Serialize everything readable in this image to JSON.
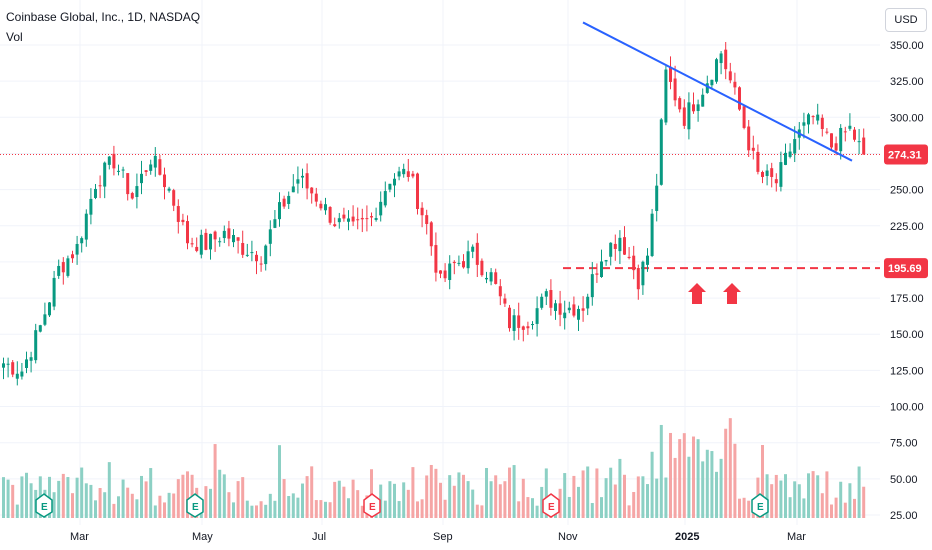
{
  "header": {
    "title": "Coinbase Global, Inc., 1D, NASDAQ",
    "volume_label": "Vol"
  },
  "currency": "USD",
  "chart_data": {
    "type": "candlestick",
    "price_axis": {
      "ticks": [
        "350.00",
        "325.00",
        "300.00",
        "275.00",
        "250.00",
        "225.00",
        "200.00",
        "175.00",
        "150.00",
        "125.00",
        "100.00",
        "75.00",
        "50.00",
        "25.00"
      ],
      "range": [
        20,
        362
      ]
    },
    "time_axis": {
      "ticks": [
        {
          "label": "Mar",
          "bold": false
        },
        {
          "label": "May",
          "bold": false
        },
        {
          "label": "Jul",
          "bold": false
        },
        {
          "label": "Sep",
          "bold": false
        },
        {
          "label": "Nov",
          "bold": false
        },
        {
          "label": "2025",
          "bold": true
        },
        {
          "label": "Mar",
          "bold": false
        }
      ]
    },
    "current_price": {
      "value": 274.31,
      "label": "274.31",
      "color": "#f23645"
    },
    "support_level": {
      "value": 195.69,
      "label": "195.69",
      "color": "#f23645"
    },
    "trendline": {
      "start_price": 349,
      "end_price": 270,
      "color": "#2962ff"
    },
    "earnings_markers": [
      {
        "label": "E",
        "color": "#089981"
      },
      {
        "label": "E",
        "color": "#089981"
      },
      {
        "label": "E",
        "color": "#f23645"
      },
      {
        "label": "E",
        "color": "#f23645"
      },
      {
        "label": "E",
        "color": "#089981"
      }
    ],
    "arrows": {
      "color": "#f23645",
      "count": 2
    },
    "colors": {
      "up": "#089981",
      "down": "#f23645",
      "vol_up": "#8cd0c4",
      "vol_down": "#f5a5a5",
      "grid": "#f0f3fa",
      "text": "#131722"
    },
    "anchors": [
      {
        "t": 0,
        "p": 130
      },
      {
        "t": 4,
        "p": 125
      },
      {
        "t": 8,
        "p": 155
      },
      {
        "t": 12,
        "p": 195
      },
      {
        "t": 16,
        "p": 210
      },
      {
        "t": 20,
        "p": 255
      },
      {
        "t": 24,
        "p": 270
      },
      {
        "t": 28,
        "p": 245
      },
      {
        "t": 32,
        "p": 272
      },
      {
        "t": 36,
        "p": 250
      },
      {
        "t": 40,
        "p": 215
      },
      {
        "t": 44,
        "p": 212
      },
      {
        "t": 48,
        "p": 220
      },
      {
        "t": 52,
        "p": 210
      },
      {
        "t": 56,
        "p": 205
      },
      {
        "t": 60,
        "p": 235
      },
      {
        "t": 64,
        "p": 258
      },
      {
        "t": 68,
        "p": 245
      },
      {
        "t": 72,
        "p": 228
      },
      {
        "t": 76,
        "p": 222
      },
      {
        "t": 80,
        "p": 230
      },
      {
        "t": 84,
        "p": 258
      },
      {
        "t": 88,
        "p": 262
      },
      {
        "t": 92,
        "p": 225
      },
      {
        "t": 95,
        "p": 185
      },
      {
        "t": 98,
        "p": 198
      },
      {
        "t": 102,
        "p": 205
      },
      {
        "t": 106,
        "p": 190
      },
      {
        "t": 110,
        "p": 158
      },
      {
        "t": 114,
        "p": 160
      },
      {
        "t": 118,
        "p": 175
      },
      {
        "t": 122,
        "p": 168
      },
      {
        "t": 126,
        "p": 170
      },
      {
        "t": 130,
        "p": 205
      },
      {
        "t": 134,
        "p": 218
      },
      {
        "t": 138,
        "p": 188
      },
      {
        "t": 140,
        "p": 205
      },
      {
        "t": 142,
        "p": 255
      },
      {
        "t": 144,
        "p": 330
      },
      {
        "t": 148,
        "p": 300
      },
      {
        "t": 152,
        "p": 320
      },
      {
        "t": 156,
        "p": 345
      },
      {
        "t": 160,
        "p": 305
      },
      {
        "t": 164,
        "p": 260
      },
      {
        "t": 168,
        "p": 255
      },
      {
        "t": 172,
        "p": 285
      },
      {
        "t": 176,
        "p": 300
      },
      {
        "t": 180,
        "p": 280
      },
      {
        "t": 184,
        "p": 292
      },
      {
        "t": 187,
        "p": 274
      }
    ]
  }
}
